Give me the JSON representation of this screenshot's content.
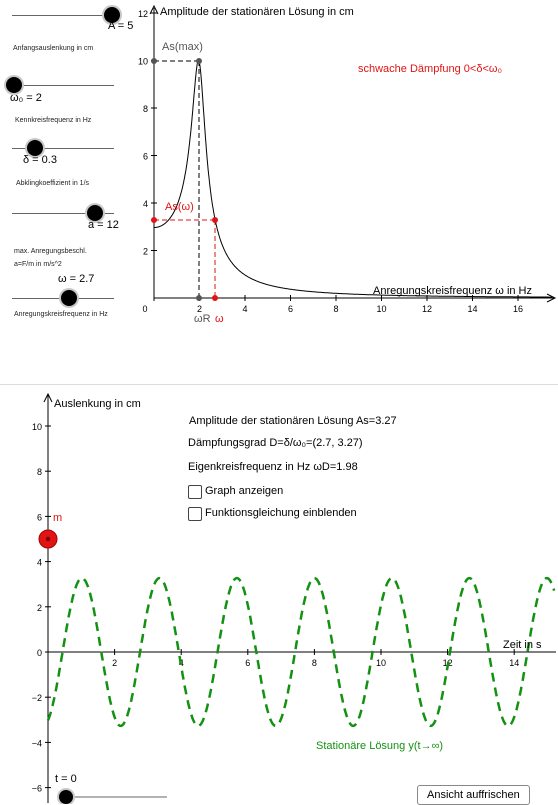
{
  "upper": {
    "sliders": [
      {
        "value_label": "A = 5",
        "caption": "Anfangsauslenkung in cm"
      },
      {
        "value_label": "ω₀ = 2",
        "caption": "Kennkreisfrequenz in Hz"
      },
      {
        "value_label": "δ = 0.3",
        "caption": "Abklingkoeffizient in 1/s"
      },
      {
        "value_label": "a = 12",
        "caption": "max. Anregungsbeschl.",
        "caption2": "a=F/m in m/s^2"
      },
      {
        "value_label": "ω = 2.7",
        "caption": "Anregungskreisfrequenz in Hz"
      }
    ],
    "plot_title": "Amplitude der stationären Lösung in cm",
    "x_axis_label": "Anregungskreisfrequenz ω in Hz",
    "label_as_max": "As(max)",
    "label_as_omega": "As(ω)",
    "label_omega_r": "ωR",
    "label_omega": "ω",
    "damping_note": "schwache Dämpfung 0<δ<ω₀",
    "y_ticks": [
      "12",
      "10",
      "8",
      "6",
      "4",
      "2"
    ],
    "x_ticks": [
      "0",
      "2",
      "4",
      "6",
      "8",
      "10",
      "12",
      "14",
      "16"
    ]
  },
  "lower": {
    "y_axis_label": "Auslenkung in cm",
    "x_axis_label": "Zeit in s",
    "info_amplitude": "Amplitude der stationären Lösung As=3.27",
    "info_damping": "Dämpfungsgrad D=δ/ω₀=(2.7, 3.27)",
    "info_eigen": "Eigenkreisfrequenz in Hz ωD=1.98",
    "checkbox_graph": "Graph anzeigen",
    "checkbox_equation": "Funktionsgleichung einblenden",
    "mass_label": "m",
    "curve_label": "Stationäre Lösung y(t→∞)",
    "t_label": "t = 0",
    "refresh_button": "Ansicht auffrischen",
    "y_ticks": [
      "10",
      "8",
      "6",
      "4",
      "2",
      "0",
      "−2",
      "−4",
      "−6"
    ],
    "x_ticks": [
      "2",
      "4",
      "6",
      "8",
      "10",
      "12",
      "14"
    ]
  },
  "colors": {
    "red": "#e01414",
    "green": "#139113",
    "gray": "#666666"
  },
  "chart_data": [
    {
      "type": "line",
      "title": "Amplitude der stationären Lösung in cm",
      "xlabel": "Anregungskreisfrequenz ω in Hz",
      "ylabel": "",
      "xlim": [
        0,
        17.5
      ],
      "ylim": [
        0,
        12
      ],
      "series": [],
      "points": [
        {
          "name": "As(max)",
          "x": 2,
          "y": 10
        },
        {
          "name": "As(ω)",
          "x": 2.7,
          "y": 3.27
        }
      ],
      "grid": false
    },
    {
      "type": "line",
      "title": "",
      "xlabel": "Zeit in s",
      "ylabel": "Auslenkung in cm",
      "xlim": [
        0,
        15
      ],
      "ylim": [
        -6.5,
        11
      ],
      "series": [
        {
          "name": "Stationäre Lösung y(t→∞)",
          "amplitude": 3.27,
          "omega": 2.7,
          "phase": -1.18
        }
      ],
      "points": [
        {
          "name": "m",
          "x": 0,
          "y": 5
        }
      ],
      "grid": false
    }
  ]
}
